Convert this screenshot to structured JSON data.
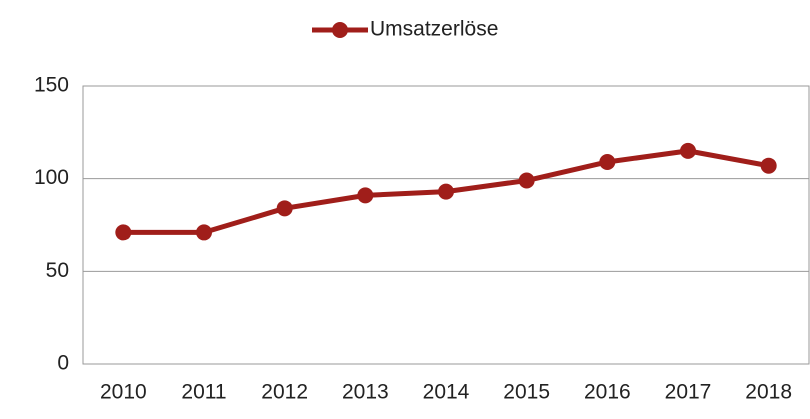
{
  "chart_data": {
    "type": "line",
    "categories": [
      "2010",
      "2011",
      "2012",
      "2013",
      "2014",
      "2015",
      "2016",
      "2017",
      "2018"
    ],
    "series": [
      {
        "name": "Umsatzerlöse",
        "color": "#a01e1a",
        "values": [
          71,
          71,
          84,
          91,
          93,
          99,
          109,
          115,
          107
        ]
      }
    ],
    "ylim": [
      0,
      150
    ],
    "yticks": [
      0,
      50,
      100,
      150
    ],
    "grid": true,
    "legend": "top"
  }
}
